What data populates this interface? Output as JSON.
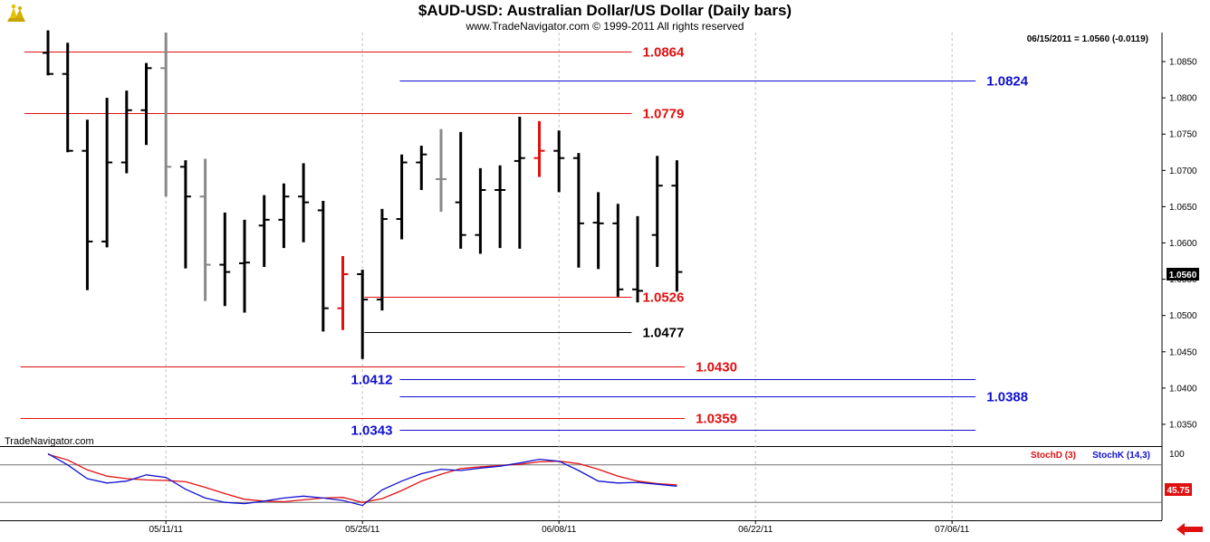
{
  "header": {
    "title": "$AUD-USD:  Australian Dollar/US Dollar  (Daily bars)",
    "subtitle": "www.TradeNavigator.com © 1999-2011 All rights reserved",
    "quote": "06/15/2011 = 1.0560 (-0.0119)"
  },
  "watermark": "TradeNavigator.com",
  "current_price_label": "1.0560",
  "osc_value_label": "45.75",
  "legend": {
    "stoch_d": "StochD (3)",
    "stoch_k": "StochK (14,3)"
  },
  "colors": {
    "bar": "#000000",
    "bar_gray": "#888888",
    "bar_red": "#e01010",
    "red_level": "#e01010",
    "blue_level": "#1010d0",
    "black_level": "#000000",
    "stoch_d": "#e01010",
    "stoch_k": "#1010d0",
    "grid": "#c0c0c0",
    "arrow": "#e01010"
  },
  "chart_data": [
    {
      "type": "ohlc",
      "title": "$AUD-USD:  Australian Dollar/US Dollar  (Daily bars)",
      "y_axis_side": "right",
      "ylim": [
        1.032,
        1.089
      ],
      "y_ticks": [
        1.035,
        1.04,
        1.045,
        1.05,
        1.055,
        1.06,
        1.065,
        1.07,
        1.075,
        1.08,
        1.085
      ],
      "y_tick_labels": [
        "1.0350",
        "1.0400",
        "1.0450",
        "1.0500",
        "1.0550",
        "1.0600",
        "1.0650",
        "1.0700",
        "1.0750",
        "1.0800",
        "1.0850"
      ],
      "x_ticks": [
        {
          "index": 6,
          "label": "05/11/11"
        },
        {
          "index": 16,
          "label": "05/25/11"
        },
        {
          "index": 26,
          "label": "06/08/11"
        },
        {
          "index": 36,
          "label": "06/22/11"
        },
        {
          "index": 46,
          "label": "07/06/11"
        }
      ],
      "bars": [
        {
          "index": 0,
          "open": 1.0862,
          "high": 1.0893,
          "low": 1.0831,
          "close": 1.0833,
          "color": "black"
        },
        {
          "index": 1,
          "open": 1.0833,
          "high": 1.0876,
          "low": 1.0725,
          "close": 1.0727,
          "color": "black"
        },
        {
          "index": 2,
          "open": 1.0727,
          "high": 1.077,
          "low": 1.0535,
          "close": 1.0602,
          "color": "black"
        },
        {
          "index": 3,
          "open": 1.0602,
          "high": 1.08,
          "low": 1.0594,
          "close": 1.0711,
          "color": "black"
        },
        {
          "index": 4,
          "open": 1.0711,
          "high": 1.081,
          "low": 1.0696,
          "close": 1.0783,
          "color": "black"
        },
        {
          "index": 5,
          "open": 1.0783,
          "high": 1.0848,
          "low": 1.0735,
          "close": 1.0841,
          "color": "black"
        },
        {
          "index": 6,
          "open": 1.0841,
          "high": 1.089,
          "low": 1.0664,
          "close": 1.0705,
          "color": "gray"
        },
        {
          "index": 7,
          "open": 1.0705,
          "high": 1.0714,
          "low": 1.0565,
          "close": 1.0664,
          "color": "black"
        },
        {
          "index": 8,
          "open": 1.0664,
          "high": 1.0716,
          "low": 1.052,
          "close": 1.057,
          "color": "gray"
        },
        {
          "index": 9,
          "open": 1.057,
          "high": 1.0642,
          "low": 1.0513,
          "close": 1.056,
          "color": "black"
        },
        {
          "index": 10,
          "open": 1.0572,
          "high": 1.0632,
          "low": 1.0504,
          "close": 1.0573,
          "color": "black"
        },
        {
          "index": 11,
          "open": 1.0624,
          "high": 1.0666,
          "low": 1.0567,
          "close": 1.0632,
          "color": "black"
        },
        {
          "index": 12,
          "open": 1.0632,
          "high": 1.0682,
          "low": 1.0593,
          "close": 1.0664,
          "color": "black"
        },
        {
          "index": 13,
          "open": 1.0664,
          "high": 1.071,
          "low": 1.0601,
          "close": 1.0656,
          "color": "black"
        },
        {
          "index": 14,
          "open": 1.0645,
          "high": 1.0658,
          "low": 1.0478,
          "close": 1.051,
          "color": "black"
        },
        {
          "index": 15,
          "open": 1.051,
          "high": 1.0582,
          "low": 1.048,
          "close": 1.0557,
          "color": "red"
        },
        {
          "index": 16,
          "open": 1.0557,
          "high": 1.0563,
          "low": 1.044,
          "close": 1.0522,
          "color": "black"
        },
        {
          "index": 17,
          "open": 1.0522,
          "high": 1.0647,
          "low": 1.0507,
          "close": 1.0633,
          "color": "black"
        },
        {
          "index": 18,
          "open": 1.0633,
          "high": 1.0722,
          "low": 1.0605,
          "close": 1.0711,
          "color": "black"
        },
        {
          "index": 19,
          "open": 1.0711,
          "high": 1.0734,
          "low": 1.0673,
          "close": 1.0722,
          "color": "black"
        },
        {
          "index": 20,
          "open": 1.0688,
          "high": 1.0757,
          "low": 1.0643,
          "close": 1.0688,
          "color": "gray"
        },
        {
          "index": 21,
          "open": 1.0656,
          "high": 1.0753,
          "low": 1.0592,
          "close": 1.0611,
          "color": "black"
        },
        {
          "index": 22,
          "open": 1.0611,
          "high": 1.0703,
          "low": 1.0585,
          "close": 1.0673,
          "color": "black"
        },
        {
          "index": 23,
          "open": 1.0673,
          "high": 1.0707,
          "low": 1.0593,
          "close": 1.0673,
          "color": "black"
        },
        {
          "index": 24,
          "open": 1.0713,
          "high": 1.0774,
          "low": 1.0592,
          "close": 1.0717,
          "color": "black"
        },
        {
          "index": 25,
          "open": 1.0717,
          "high": 1.0768,
          "low": 1.0691,
          "close": 1.0727,
          "color": "red"
        },
        {
          "index": 26,
          "open": 1.0727,
          "high": 1.0755,
          "low": 1.067,
          "close": 1.0717,
          "color": "black"
        },
        {
          "index": 27,
          "open": 1.0717,
          "high": 1.0724,
          "low": 1.0566,
          "close": 1.0627,
          "color": "black"
        },
        {
          "index": 28,
          "open": 1.0628,
          "high": 1.067,
          "low": 1.0564,
          "close": 1.0627,
          "color": "black"
        },
        {
          "index": 29,
          "open": 1.0627,
          "high": 1.0654,
          "low": 1.0526,
          "close": 1.0536,
          "color": "black"
        },
        {
          "index": 30,
          "open": 1.0536,
          "high": 1.0637,
          "low": 1.0518,
          "close": 1.0534,
          "color": "black"
        },
        {
          "index": 31,
          "open": 1.0611,
          "high": 1.072,
          "low": 1.0567,
          "close": 1.0679,
          "color": "black"
        },
        {
          "index": 32,
          "open": 1.0679,
          "high": 1.0714,
          "low": 1.0533,
          "close": 1.056,
          "color": "black"
        }
      ],
      "levels": [
        {
          "price": 1.0864,
          "label": "1.0864",
          "color": "red",
          "from": -1.2,
          "to": 29.7,
          "label_side": "right"
        },
        {
          "price": 1.0824,
          "label": "1.0824",
          "color": "blue",
          "from": 17.9,
          "to": 47.2,
          "label_side": "right"
        },
        {
          "price": 1.0779,
          "label": "1.0779",
          "color": "red",
          "from": -1.2,
          "to": 29.7,
          "label_side": "right"
        },
        {
          "price": 1.0526,
          "label": "1.0526",
          "color": "red",
          "from": 16.1,
          "to": 29.7,
          "label_side": "right"
        },
        {
          "price": 1.0477,
          "label": "1.0477",
          "color": "black",
          "from": 16.1,
          "to": 29.7,
          "label_side": "right"
        },
        {
          "price": 1.043,
          "label": "1.0430",
          "color": "red",
          "from": -1.4,
          "to": 32.4,
          "label_side": "right"
        },
        {
          "price": 1.0412,
          "label": "1.0412",
          "color": "blue",
          "from": 17.9,
          "to": 47.2,
          "label_side": "left"
        },
        {
          "price": 1.0388,
          "label": "1.0388",
          "color": "blue",
          "from": 17.9,
          "to": 47.2,
          "label_side": "right"
        },
        {
          "price": 1.0359,
          "label": "1.0359",
          "color": "red",
          "from": -1.4,
          "to": 32.4,
          "label_side": "right"
        },
        {
          "price": 1.0343,
          "label": "1.0343",
          "color": "blue",
          "from": 17.9,
          "to": 47.2,
          "label_side": "left"
        }
      ]
    },
    {
      "type": "line",
      "title": "",
      "ylim": [
        0,
        100
      ],
      "y_ticks": [
        100
      ],
      "y_tick_labels": [
        "100"
      ],
      "reference_lines": [
        80,
        20
      ],
      "series": [
        {
          "name": "StochD (3)",
          "color": "red",
          "x": [
            0,
            1,
            2,
            3,
            4,
            5,
            6,
            7,
            8,
            9,
            10,
            11,
            12,
            13,
            14,
            15,
            16,
            17,
            18,
            19,
            20,
            21,
            22,
            23,
            24,
            25,
            26,
            27,
            28,
            29,
            30,
            31,
            32
          ],
          "y": [
            97,
            88,
            72,
            62,
            58,
            56,
            55,
            53,
            44,
            34,
            25,
            22,
            21,
            24,
            27,
            28,
            20,
            26,
            39,
            54,
            65,
            74,
            77,
            79,
            81,
            85,
            86,
            82,
            73,
            62,
            54,
            50,
            48
          ]
        },
        {
          "name": "StochK (14,3)",
          "color": "blue",
          "x": [
            0,
            1,
            2,
            3,
            4,
            5,
            6,
            7,
            8,
            9,
            10,
            11,
            12,
            13,
            14,
            15,
            16,
            17,
            18,
            19,
            20,
            21,
            22,
            23,
            24,
            25,
            26,
            27,
            28,
            29,
            30,
            31,
            32
          ],
          "y": [
            98,
            80,
            58,
            51,
            54,
            64,
            60,
            41,
            27,
            20,
            18,
            22,
            27,
            30,
            27,
            23,
            15,
            40,
            54,
            66,
            73,
            71,
            75,
            78,
            83,
            89,
            86,
            71,
            54,
            51,
            52,
            49,
            46
          ]
        }
      ],
      "value_label": "45.75"
    }
  ]
}
